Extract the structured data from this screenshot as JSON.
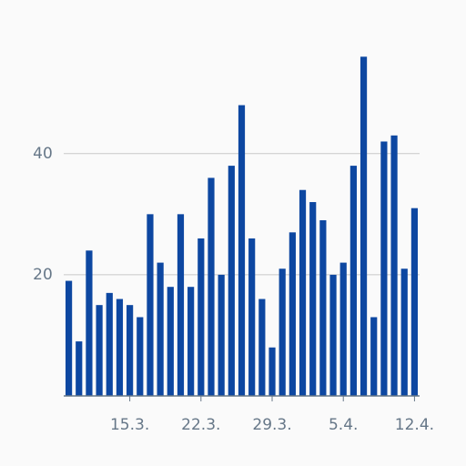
{
  "chart_data": {
    "type": "bar",
    "categories": [
      null,
      null,
      null,
      null,
      null,
      null,
      "15.3.",
      null,
      null,
      null,
      null,
      null,
      null,
      "22.3.",
      null,
      null,
      null,
      null,
      null,
      null,
      "29.3.",
      null,
      null,
      null,
      null,
      null,
      null,
      "5.4.",
      null,
      null,
      null,
      null,
      null,
      null,
      "12.4."
    ],
    "values": [
      19,
      9,
      24,
      15,
      17,
      16,
      15,
      13,
      30,
      22,
      18,
      30,
      18,
      26,
      36,
      20,
      38,
      48,
      26,
      16,
      8,
      21,
      27,
      34,
      32,
      29,
      20,
      22,
      38,
      56,
      13,
      42,
      43,
      21,
      31
    ],
    "color": "#0d47a1",
    "ylim": [
      0,
      58
    ],
    "yticks": [
      20,
      40
    ],
    "grid": true
  }
}
